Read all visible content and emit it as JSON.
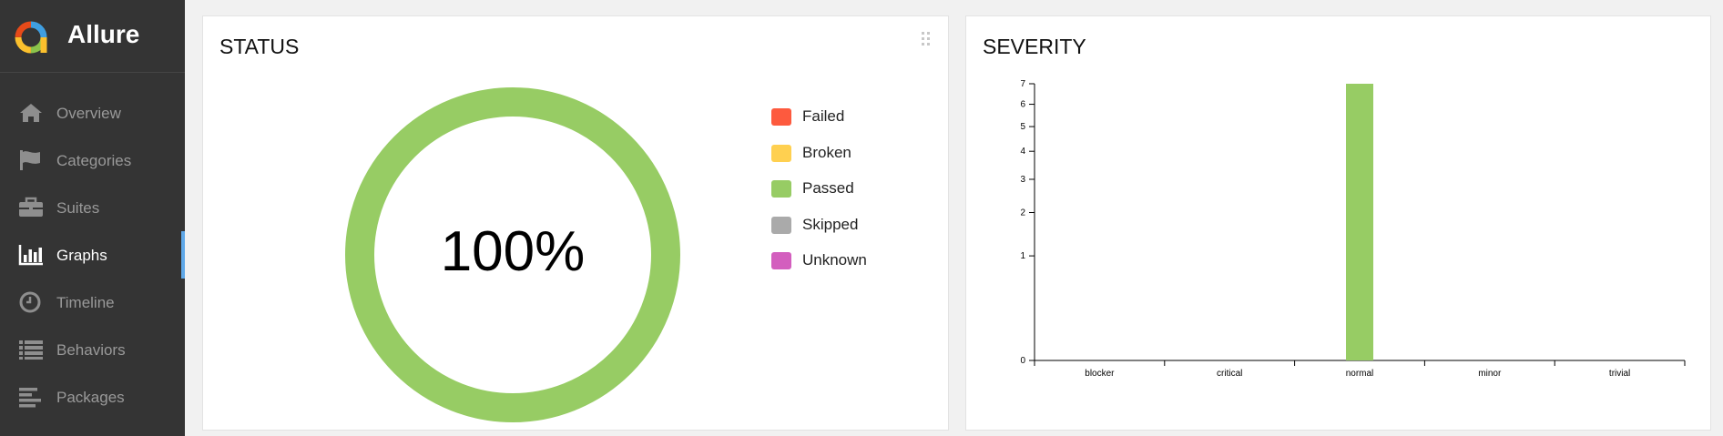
{
  "app": {
    "name": "Allure",
    "logo_colors": [
      "#e64a19",
      "#fbc02d",
      "#8bc34a",
      "#3f9ee0"
    ]
  },
  "sidebar": {
    "items": [
      {
        "label": "Overview",
        "icon": "home-icon",
        "active": false
      },
      {
        "label": "Categories",
        "icon": "flag-icon",
        "active": false
      },
      {
        "label": "Suites",
        "icon": "briefcase-icon",
        "active": false
      },
      {
        "label": "Graphs",
        "icon": "bar-chart-icon",
        "active": true
      },
      {
        "label": "Timeline",
        "icon": "clock-icon",
        "active": false
      },
      {
        "label": "Behaviors",
        "icon": "list-icon",
        "active": false
      },
      {
        "label": "Packages",
        "icon": "align-left-icon",
        "active": false
      }
    ],
    "active_indicator_color": "#5fa8e8"
  },
  "status_widget": {
    "title": "STATUS",
    "center_text": "100%",
    "legend": [
      {
        "label": "Failed",
        "color": "#fd5a3e"
      },
      {
        "label": "Broken",
        "color": "#ffd050"
      },
      {
        "label": "Passed",
        "color": "#97cc64"
      },
      {
        "label": "Skipped",
        "color": "#aaaaaa"
      },
      {
        "label": "Unknown",
        "color": "#d35ebe"
      }
    ],
    "chart_data": {
      "type": "pie",
      "categories": [
        "Failed",
        "Broken",
        "Passed",
        "Skipped",
        "Unknown"
      ],
      "values": [
        0,
        0,
        100,
        0,
        0
      ],
      "title": "STATUS",
      "center_label": "100%"
    }
  },
  "severity_widget": {
    "title": "SEVERITY",
    "chart_data": {
      "type": "bar",
      "categories": [
        "blocker",
        "critical",
        "normal",
        "minor",
        "trivial"
      ],
      "values": [
        0,
        0,
        7,
        0,
        0
      ],
      "title": "SEVERITY",
      "xlabel": "",
      "ylabel": "",
      "y_scale": "sqrt",
      "yticks": [
        0,
        1,
        2,
        3,
        4,
        5,
        6,
        7
      ],
      "ylim": [
        0,
        7
      ],
      "bar_color": "#97cc64"
    }
  }
}
